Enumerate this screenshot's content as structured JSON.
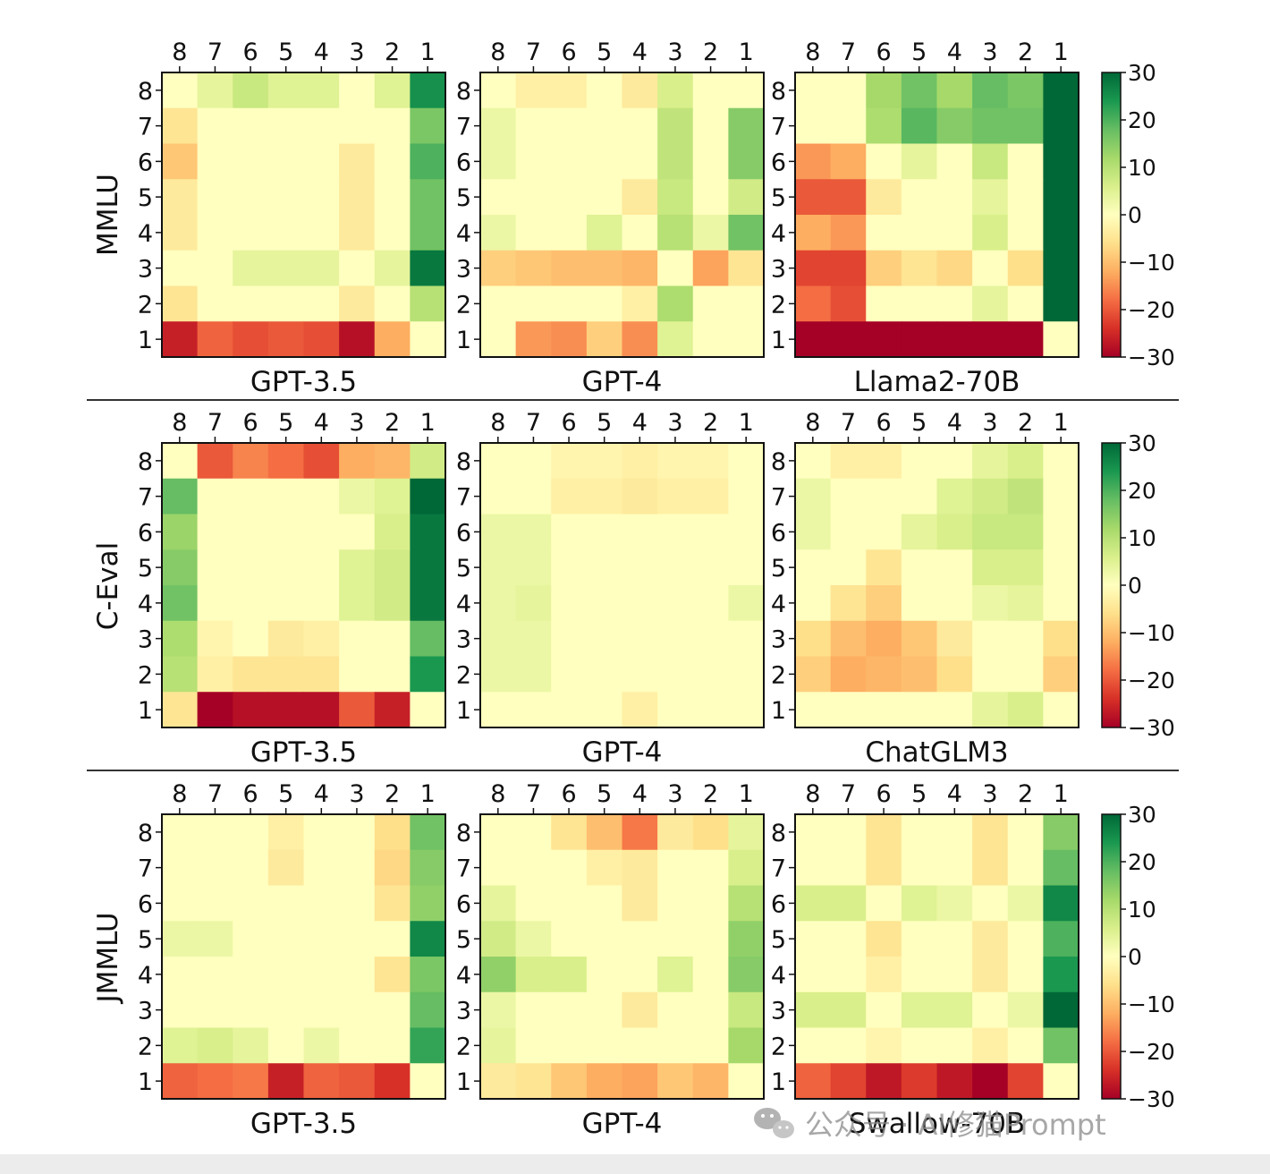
{
  "chart_data": [
    {
      "type": "heatmap",
      "title": "GPT-3.5",
      "row_label": "MMLU",
      "x_ticks": [
        "8",
        "7",
        "6",
        "5",
        "4",
        "3",
        "2",
        "1"
      ],
      "y_ticks": [
        "8",
        "7",
        "6",
        "5",
        "4",
        "3",
        "2",
        "1"
      ],
      "values": [
        [
          0,
          4,
          8,
          5,
          5,
          0,
          5,
          25
        ],
        [
          -5,
          0,
          0,
          0,
          0,
          0,
          0,
          16
        ],
        [
          -9,
          0,
          0,
          0,
          0,
          -4,
          0,
          20
        ],
        [
          -4,
          0,
          0,
          0,
          0,
          -4,
          0,
          17
        ],
        [
          -4,
          0,
          0,
          0,
          0,
          -4,
          0,
          17
        ],
        [
          0,
          0,
          4,
          4,
          4,
          0,
          4,
          28
        ],
        [
          -5,
          0,
          0,
          0,
          0,
          -4,
          0,
          10
        ],
        [
          -26,
          -19,
          -21,
          -20,
          -21,
          -28,
          -12,
          0
        ]
      ]
    },
    {
      "type": "heatmap",
      "title": "GPT-4",
      "row_label": "MMLU",
      "x_ticks": [
        "8",
        "7",
        "6",
        "5",
        "4",
        "3",
        "2",
        "1"
      ],
      "y_ticks": [
        "8",
        "7",
        "6",
        "5",
        "4",
        "3",
        "2",
        "1"
      ],
      "values": [
        [
          0,
          -3,
          -3,
          0,
          -4,
          6,
          0,
          0
        ],
        [
          3,
          0,
          0,
          0,
          0,
          9,
          0,
          15
        ],
        [
          3,
          0,
          0,
          0,
          0,
          9,
          0,
          15
        ],
        [
          0,
          0,
          0,
          0,
          -4,
          8,
          0,
          7
        ],
        [
          3,
          0,
          0,
          5,
          0,
          10,
          3,
          17
        ],
        [
          -8,
          -9,
          -10,
          -10,
          -11,
          0,
          -13,
          -5
        ],
        [
          0,
          0,
          0,
          0,
          -3,
          11,
          0,
          0
        ],
        [
          0,
          -14,
          -15,
          -8,
          -15,
          5,
          0,
          0
        ]
      ]
    },
    {
      "type": "heatmap",
      "title": "Llama2-70B",
      "row_label": "MMLU",
      "x_ticks": [
        "8",
        "7",
        "6",
        "5",
        "4",
        "3",
        "2",
        "1"
      ],
      "y_ticks": [
        "8",
        "7",
        "6",
        "5",
        "4",
        "3",
        "2",
        "1"
      ],
      "values": [
        [
          0,
          0,
          12,
          17,
          12,
          18,
          16,
          30
        ],
        [
          0,
          0,
          11,
          19,
          15,
          17,
          17,
          30
        ],
        [
          -14,
          -12,
          0,
          4,
          0,
          8,
          0,
          30
        ],
        [
          -20,
          -20,
          -4,
          0,
          0,
          4,
          0,
          30
        ],
        [
          -12,
          -14,
          0,
          0,
          0,
          6,
          0,
          30
        ],
        [
          -22,
          -22,
          -8,
          -5,
          -7,
          0,
          -6,
          30
        ],
        [
          -18,
          -21,
          0,
          0,
          0,
          4,
          0,
          30
        ],
        [
          -30,
          -30,
          -30,
          -30,
          -30,
          -30,
          -30,
          0
        ]
      ]
    },
    {
      "type": "heatmap",
      "title": "GPT-3.5",
      "row_label": "C-Eval",
      "x_ticks": [
        "8",
        "7",
        "6",
        "5",
        "4",
        "3",
        "2",
        "1"
      ],
      "y_ticks": [
        "8",
        "7",
        "6",
        "5",
        "4",
        "3",
        "2",
        "1"
      ],
      "values": [
        [
          0,
          -20,
          -16,
          -18,
          -21,
          -12,
          -11,
          7
        ],
        [
          18,
          0,
          0,
          0,
          0,
          3,
          5,
          30
        ],
        [
          13,
          0,
          0,
          0,
          0,
          0,
          6,
          28
        ],
        [
          15,
          0,
          0,
          0,
          0,
          5,
          7,
          28
        ],
        [
          17,
          0,
          0,
          0,
          0,
          5,
          7,
          28
        ],
        [
          11,
          -2,
          0,
          -4,
          -3,
          0,
          0,
          18
        ],
        [
          10,
          -3,
          -5,
          -5,
          -5,
          0,
          0,
          24
        ],
        [
          -5,
          -30,
          -28,
          -28,
          -28,
          -20,
          -26,
          0
        ]
      ]
    },
    {
      "type": "heatmap",
      "title": "GPT-4",
      "row_label": "C-Eval",
      "x_ticks": [
        "8",
        "7",
        "6",
        "5",
        "4",
        "3",
        "2",
        "1"
      ],
      "y_ticks": [
        "8",
        "7",
        "6",
        "5",
        "4",
        "3",
        "2",
        "1"
      ],
      "values": [
        [
          0,
          0,
          -2,
          -2,
          -3,
          -2,
          -2,
          0
        ],
        [
          0,
          0,
          -3,
          -3,
          -4,
          -3,
          -3,
          0
        ],
        [
          3,
          3,
          0,
          0,
          0,
          0,
          0,
          0
        ],
        [
          3,
          3,
          0,
          0,
          0,
          0,
          0,
          0
        ],
        [
          3,
          4,
          0,
          0,
          0,
          0,
          0,
          3
        ],
        [
          3,
          3,
          0,
          0,
          0,
          0,
          0,
          0
        ],
        [
          3,
          3,
          0,
          0,
          0,
          0,
          0,
          0
        ],
        [
          0,
          0,
          0,
          0,
          -3,
          0,
          0,
          0
        ]
      ]
    },
    {
      "type": "heatmap",
      "title": "ChatGLM3",
      "row_label": "C-Eval",
      "x_ticks": [
        "8",
        "7",
        "6",
        "5",
        "4",
        "3",
        "2",
        "1"
      ],
      "y_ticks": [
        "8",
        "7",
        "6",
        "5",
        "4",
        "3",
        "2",
        "1"
      ],
      "values": [
        [
          0,
          -3,
          -3,
          0,
          0,
          4,
          6,
          0
        ],
        [
          3,
          0,
          0,
          0,
          5,
          7,
          9,
          0
        ],
        [
          3,
          0,
          0,
          4,
          6,
          8,
          8,
          0
        ],
        [
          0,
          0,
          -5,
          0,
          0,
          6,
          6,
          0
        ],
        [
          0,
          -5,
          -8,
          0,
          0,
          3,
          4,
          0
        ],
        [
          -6,
          -10,
          -12,
          -9,
          -4,
          0,
          0,
          -6
        ],
        [
          -8,
          -12,
          -11,
          -10,
          -6,
          0,
          0,
          -8
        ],
        [
          0,
          0,
          0,
          0,
          0,
          4,
          6,
          0
        ]
      ]
    },
    {
      "type": "heatmap",
      "title": "GPT-3.5",
      "row_label": "JMMLU",
      "x_ticks": [
        "8",
        "7",
        "6",
        "5",
        "4",
        "3",
        "2",
        "1"
      ],
      "y_ticks": [
        "8",
        "7",
        "6",
        "5",
        "4",
        "3",
        "2",
        "1"
      ],
      "values": [
        [
          0,
          0,
          0,
          -3,
          0,
          0,
          -6,
          17
        ],
        [
          0,
          0,
          0,
          -4,
          0,
          0,
          -7,
          15
        ],
        [
          0,
          0,
          0,
          0,
          0,
          0,
          -5,
          14
        ],
        [
          3,
          3,
          0,
          0,
          0,
          0,
          0,
          26
        ],
        [
          0,
          0,
          0,
          0,
          0,
          0,
          -5,
          16
        ],
        [
          0,
          0,
          0,
          0,
          0,
          0,
          0,
          18
        ],
        [
          5,
          6,
          4,
          0,
          3,
          0,
          0,
          22
        ],
        [
          -19,
          -18,
          -17,
          -26,
          -19,
          -20,
          -24,
          0
        ]
      ]
    },
    {
      "type": "heatmap",
      "title": "GPT-4",
      "row_label": "JMMLU",
      "x_ticks": [
        "8",
        "7",
        "6",
        "5",
        "4",
        "3",
        "2",
        "1"
      ],
      "y_ticks": [
        "8",
        "7",
        "6",
        "5",
        "4",
        "3",
        "2",
        "1"
      ],
      "values": [
        [
          0,
          0,
          -5,
          -10,
          -17,
          -4,
          -6,
          4
        ],
        [
          0,
          0,
          0,
          -3,
          -4,
          0,
          0,
          6
        ],
        [
          4,
          0,
          0,
          0,
          -4,
          0,
          0,
          10
        ],
        [
          7,
          3,
          0,
          0,
          0,
          0,
          0,
          14
        ],
        [
          14,
          6,
          6,
          0,
          0,
          5,
          0,
          15
        ],
        [
          3,
          0,
          0,
          0,
          -4,
          0,
          0,
          8
        ],
        [
          4,
          0,
          0,
          0,
          0,
          0,
          0,
          12
        ],
        [
          -4,
          -5,
          -9,
          -12,
          -13,
          -9,
          -11,
          0
        ]
      ]
    },
    {
      "type": "heatmap",
      "title": "Swallow-70B",
      "row_label": "JMMLU",
      "x_ticks": [
        "8",
        "7",
        "6",
        "5",
        "4",
        "3",
        "2",
        "1"
      ],
      "y_ticks": [
        "8",
        "7",
        "6",
        "5",
        "4",
        "3",
        "2",
        "1"
      ],
      "values": [
        [
          0,
          0,
          -5,
          0,
          0,
          -5,
          0,
          15
        ],
        [
          0,
          0,
          -5,
          0,
          0,
          -5,
          0,
          18
        ],
        [
          6,
          6,
          0,
          5,
          3,
          0,
          3,
          26
        ],
        [
          0,
          0,
          -5,
          0,
          0,
          -4,
          0,
          20
        ],
        [
          0,
          0,
          -3,
          0,
          0,
          -4,
          0,
          24
        ],
        [
          6,
          6,
          0,
          5,
          5,
          0,
          3,
          30
        ],
        [
          0,
          0,
          -2,
          0,
          0,
          -3,
          0,
          17
        ],
        [
          -19,
          -22,
          -27,
          -23,
          -27,
          -30,
          -22,
          0
        ]
      ]
    }
  ],
  "colorbars": [
    {
      "ticks": [
        "30",
        "20",
        "10",
        "0",
        "−10",
        "−20",
        "−30"
      ],
      "vmin": -30,
      "vmax": 30
    },
    {
      "ticks": [
        "30",
        "20",
        "10",
        "0",
        "−10",
        "−20",
        "−30"
      ],
      "vmin": -30,
      "vmax": 30
    },
    {
      "ticks": [
        "30",
        "20",
        "10",
        "0",
        "−10",
        "−20",
        "−30"
      ],
      "vmin": -30,
      "vmax": 30
    }
  ],
  "colormap": {
    "name": "RdYlGn",
    "stops": [
      "#a50026",
      "#d73027",
      "#f46d43",
      "#fdae61",
      "#fee08b",
      "#ffffbf",
      "#d9ef8b",
      "#a6d96a",
      "#66bd63",
      "#1a9850",
      "#006837"
    ]
  },
  "watermark": {
    "text": "公众号 · AI修猫Prompt"
  }
}
